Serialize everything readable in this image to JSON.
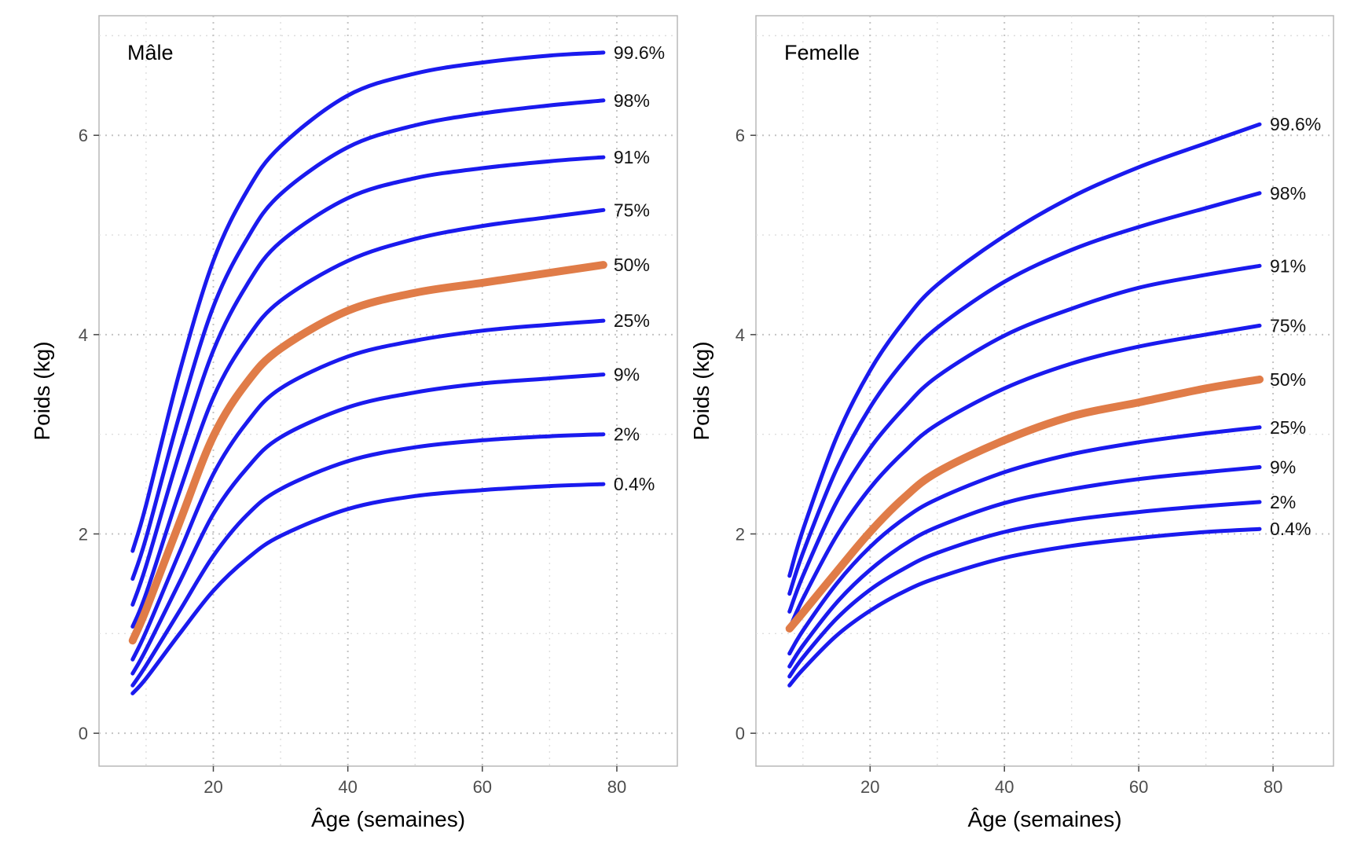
{
  "chart_data": [
    {
      "type": "line",
      "title": "Mâle",
      "xlabel": "Âge (semaines)",
      "ylabel": "Poids (kg)",
      "xlim": [
        3,
        89
      ],
      "ylim": [
        -0.33,
        7.2
      ],
      "xticks": [
        20,
        40,
        60,
        80
      ],
      "yticks": [
        0,
        2,
        4,
        6
      ],
      "grid": true,
      "series": [
        {
          "name": "0.4%",
          "x": [
            8,
            10,
            15,
            20,
            25,
            30,
            40,
            50,
            60,
            70,
            78
          ],
          "y": [
            0.4,
            0.55,
            1.0,
            1.43,
            1.75,
            1.98,
            2.25,
            2.38,
            2.44,
            2.48,
            2.5
          ]
        },
        {
          "name": "2%",
          "x": [
            8,
            10,
            15,
            20,
            25,
            30,
            40,
            50,
            60,
            70,
            78
          ],
          "y": [
            0.48,
            0.68,
            1.23,
            1.78,
            2.19,
            2.45,
            2.73,
            2.87,
            2.94,
            2.98,
            3.0
          ]
        },
        {
          "name": "9%",
          "x": [
            8,
            10,
            15,
            20,
            25,
            30,
            40,
            50,
            60,
            70,
            78
          ],
          "y": [
            0.6,
            0.84,
            1.52,
            2.2,
            2.66,
            2.97,
            3.27,
            3.42,
            3.51,
            3.56,
            3.6
          ]
        },
        {
          "name": "25%",
          "x": [
            8,
            10,
            15,
            20,
            25,
            30,
            40,
            50,
            60,
            70,
            78
          ],
          "y": [
            0.74,
            1.02,
            1.82,
            2.6,
            3.12,
            3.46,
            3.78,
            3.94,
            4.04,
            4.1,
            4.14
          ]
        },
        {
          "name": "50%",
          "x": [
            8,
            10,
            15,
            20,
            25,
            30,
            40,
            50,
            60,
            70,
            78
          ],
          "y": [
            0.93,
            1.24,
            2.12,
            2.98,
            3.52,
            3.86,
            4.24,
            4.42,
            4.52,
            4.62,
            4.7
          ]
        },
        {
          "name": "75%",
          "x": [
            8,
            10,
            15,
            20,
            25,
            30,
            40,
            50,
            60,
            70,
            78
          ],
          "y": [
            1.07,
            1.4,
            2.43,
            3.37,
            3.96,
            4.34,
            4.74,
            4.96,
            5.09,
            5.18,
            5.25
          ]
        },
        {
          "name": "91%",
          "x": [
            8,
            10,
            15,
            20,
            25,
            30,
            40,
            50,
            60,
            70,
            78
          ],
          "y": [
            1.29,
            1.68,
            2.82,
            3.84,
            4.5,
            4.93,
            5.37,
            5.57,
            5.67,
            5.74,
            5.78
          ]
        },
        {
          "name": "98%",
          "x": [
            8,
            10,
            15,
            20,
            25,
            30,
            40,
            50,
            60,
            70,
            78
          ],
          "y": [
            1.55,
            1.96,
            3.2,
            4.28,
            4.96,
            5.41,
            5.88,
            6.1,
            6.22,
            6.3,
            6.35
          ]
        },
        {
          "name": "99.6%",
          "x": [
            8,
            10,
            15,
            20,
            25,
            30,
            40,
            50,
            60,
            70,
            78
          ],
          "y": [
            1.83,
            2.29,
            3.63,
            4.74,
            5.44,
            5.89,
            6.4,
            6.62,
            6.73,
            6.8,
            6.83
          ]
        }
      ],
      "highlight": {
        "name": "50%",
        "color": "#e07c48"
      },
      "line_color": "#1a1aee"
    },
    {
      "type": "line",
      "title": "Femelle",
      "xlabel": "Âge (semaines)",
      "ylabel": "Poids (kg)",
      "xlim": [
        3,
        89
      ],
      "ylim": [
        -0.33,
        7.2
      ],
      "xticks": [
        20,
        40,
        60,
        80
      ],
      "yticks": [
        0,
        2,
        4,
        6
      ],
      "grid": true,
      "series": [
        {
          "name": "0.4%",
          "x": [
            8,
            10,
            15,
            20,
            25,
            30,
            40,
            50,
            60,
            70,
            78
          ],
          "y": [
            0.48,
            0.64,
            0.98,
            1.23,
            1.42,
            1.56,
            1.76,
            1.88,
            1.96,
            2.02,
            2.05
          ]
        },
        {
          "name": "2%",
          "x": [
            8,
            10,
            15,
            20,
            25,
            30,
            40,
            50,
            60,
            70,
            78
          ],
          "y": [
            0.57,
            0.76,
            1.15,
            1.44,
            1.65,
            1.81,
            2.02,
            2.14,
            2.22,
            2.28,
            2.32
          ]
        },
        {
          "name": "9%",
          "x": [
            8,
            10,
            15,
            20,
            25,
            30,
            40,
            50,
            60,
            70,
            78
          ],
          "y": [
            0.67,
            0.88,
            1.31,
            1.64,
            1.89,
            2.07,
            2.31,
            2.45,
            2.55,
            2.62,
            2.67
          ]
        },
        {
          "name": "25%",
          "x": [
            8,
            10,
            15,
            20,
            25,
            30,
            40,
            50,
            60,
            70,
            78
          ],
          "y": [
            0.8,
            1.03,
            1.5,
            1.87,
            2.15,
            2.35,
            2.62,
            2.8,
            2.92,
            3.01,
            3.07
          ]
        },
        {
          "name": "50%",
          "x": [
            8,
            10,
            15,
            20,
            25,
            30,
            40,
            50,
            60,
            70,
            78
          ],
          "y": [
            1.05,
            1.21,
            1.62,
            2.02,
            2.36,
            2.62,
            2.94,
            3.18,
            3.32,
            3.46,
            3.55
          ]
        },
        {
          "name": "75%",
          "x": [
            8,
            10,
            15,
            20,
            25,
            30,
            40,
            50,
            60,
            70,
            78
          ],
          "y": [
            1.05,
            1.35,
            1.98,
            2.46,
            2.82,
            3.1,
            3.46,
            3.71,
            3.88,
            4.0,
            4.09
          ]
        },
        {
          "name": "91%",
          "x": [
            8,
            10,
            15,
            20,
            25,
            30,
            40,
            50,
            60,
            70,
            78
          ],
          "y": [
            1.22,
            1.58,
            2.32,
            2.86,
            3.26,
            3.58,
            3.99,
            4.26,
            4.47,
            4.6,
            4.69
          ]
        },
        {
          "name": "98%",
          "x": [
            8,
            10,
            15,
            20,
            25,
            30,
            40,
            50,
            60,
            70,
            78
          ],
          "y": [
            1.4,
            1.81,
            2.65,
            3.27,
            3.73,
            4.07,
            4.53,
            4.85,
            5.08,
            5.27,
            5.42
          ]
        },
        {
          "name": "99.6%",
          "x": [
            8,
            10,
            15,
            20,
            25,
            30,
            40,
            50,
            60,
            70,
            78
          ],
          "y": [
            1.58,
            2.04,
            2.97,
            3.64,
            4.13,
            4.5,
            4.99,
            5.38,
            5.68,
            5.92,
            6.11
          ]
        }
      ],
      "highlight": {
        "name": "50%",
        "color": "#e07c48"
      },
      "line_color": "#1a1aee"
    }
  ]
}
